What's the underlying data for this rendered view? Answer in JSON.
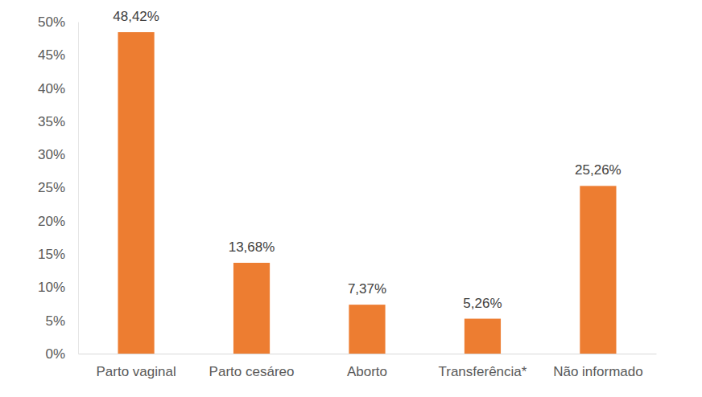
{
  "chart_data": {
    "type": "bar",
    "categories": [
      "Parto vaginal",
      "Parto cesáreo",
      "Aborto",
      "Transferência*",
      "Não informado"
    ],
    "values": [
      48.42,
      13.68,
      7.37,
      5.26,
      25.26
    ],
    "value_labels": [
      "48,42%",
      "13,68%",
      "7,37%",
      "5,26%",
      "25,26%"
    ],
    "color": "#ed7d31",
    "ylim": [
      0,
      50
    ],
    "yticks": [
      {
        "value": 0,
        "label": "0%"
      },
      {
        "value": 5,
        "label": "5%"
      },
      {
        "value": 10,
        "label": "10%"
      },
      {
        "value": 15,
        "label": "15%"
      },
      {
        "value": 20,
        "label": "20%"
      },
      {
        "value": 25,
        "label": "25%"
      },
      {
        "value": 30,
        "label": "30%"
      },
      {
        "value": 35,
        "label": "35%"
      },
      {
        "value": 40,
        "label": "40%"
      },
      {
        "value": 45,
        "label": "45%"
      },
      {
        "value": 50,
        "label": "50%"
      }
    ],
    "grid": false,
    "data_labels": true
  }
}
